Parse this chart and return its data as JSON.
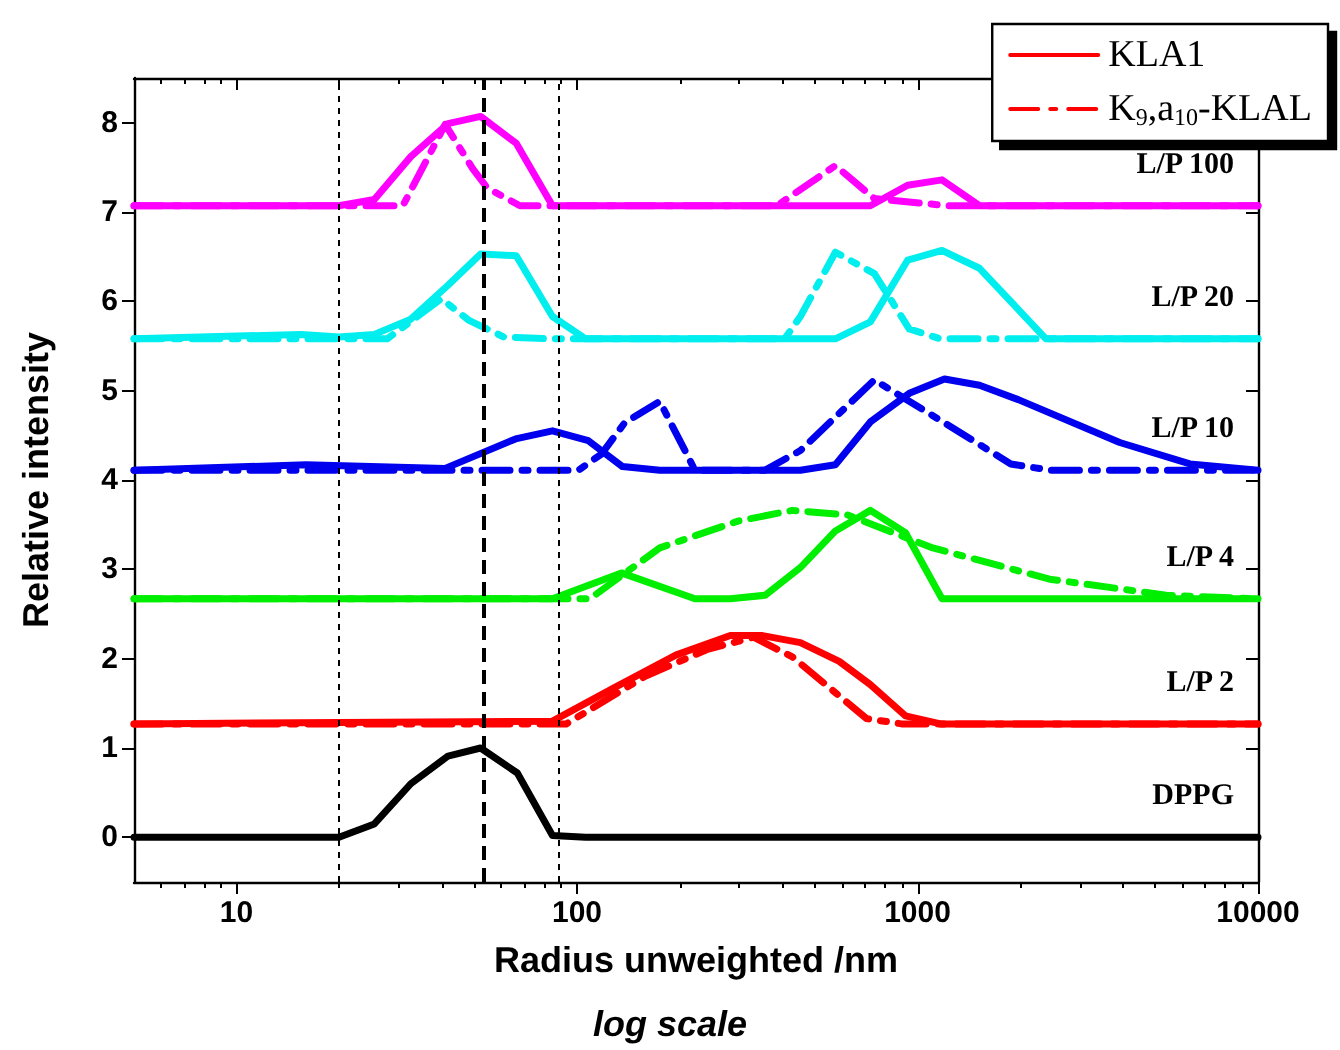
{
  "chart_data": {
    "type": "line",
    "xlabel": "Radius unweighted /nm",
    "ylabel": "Relative intensity",
    "log": "x",
    "xlim": [
      5,
      10000
    ],
    "xticks": [
      10,
      100,
      1000,
      10000
    ],
    "ylim": [
      -0.5,
      8.5
    ],
    "yticks": [
      0,
      1,
      2,
      3,
      4,
      5,
      6,
      7,
      8
    ],
    "grid": false,
    "legend": "top right",
    "marker": "none",
    "series": [
      {
        "color": "#000000",
        "line_style": "solid",
        "x": [
          5,
          20,
          25.4,
          32.5,
          41.8,
          52.1,
          66.8,
          84.7,
          106,
          10000
        ],
        "values": [
          0,
          0,
          0.15,
          0.6,
          0.91,
          1.0,
          0.72,
          0.02,
          0,
          0
        ]
      },
      {
        "name": "KLA1",
        "color": "#ff0000",
        "line_style": "solid",
        "x": [
          5,
          84.7,
          128,
          195,
          282,
          348,
          453,
          589,
          727,
          922,
          1169,
          10000
        ],
        "values": [
          1.27,
          1.3,
          1.67,
          2.04,
          2.26,
          2.26,
          2.18,
          1.97,
          1.71,
          1.36,
          1.27,
          1.27
        ]
      },
      {
        "name": "K$_{9}$,a$_{10}$-KLAL",
        "color": "#ff0000",
        "line_style": "dashdot",
        "x": [
          5,
          93,
          158,
          240,
          330,
          429,
          708,
          897,
          10000
        ],
        "values": [
          1.27,
          1.27,
          1.8,
          2.1,
          2.24,
          2.02,
          1.33,
          1.27,
          1.27
        ]
      },
      {
        "color": "#00ee00",
        "line_style": "solid",
        "x": [
          5,
          84.7,
          135,
          222,
          282,
          357,
          453,
          574,
          727,
          922,
          1180,
          10000
        ],
        "values": [
          2.67,
          2.67,
          2.96,
          2.67,
          2.67,
          2.71,
          3.02,
          3.43,
          3.66,
          3.41,
          2.67,
          2.67
        ]
      },
      {
        "color": "#00ee00",
        "line_style": "dashdot",
        "x": [
          5,
          109,
          175,
          297,
          429,
          621,
          1109,
          2443,
          5380,
          10000
        ],
        "values": [
          2.67,
          2.67,
          3.24,
          3.54,
          3.66,
          3.61,
          3.24,
          2.89,
          2.71,
          2.67
        ]
      },
      {
        "color": "#0000ee",
        "line_style": "solid",
        "x": [
          5,
          16,
          41,
          66,
          84.7,
          108,
          136,
          175,
          453,
          574,
          727,
          946,
          1200,
          1521,
          1977,
          3926,
          6310,
          10000
        ],
        "values": [
          4.11,
          4.17,
          4.13,
          4.46,
          4.55,
          4.44,
          4.15,
          4.11,
          4.11,
          4.17,
          4.65,
          4.97,
          5.13,
          5.06,
          4.9,
          4.42,
          4.18,
          4.11
        ]
      },
      {
        "color": "#0000ee",
        "line_style": "dashdot",
        "x": [
          5,
          49.5,
          101,
          118,
          138,
          175,
          222,
          357,
          453,
          747,
          1109,
          1879,
          2443,
          10000
        ],
        "values": [
          4.11,
          4.11,
          4.11,
          4.29,
          4.64,
          4.88,
          4.11,
          4.11,
          4.33,
          5.12,
          4.72,
          4.18,
          4.11,
          4.11
        ]
      },
      {
        "color": "#00eeee",
        "line_style": "solid",
        "x": [
          5,
          15.5,
          20,
          25.4,
          32.5,
          41.8,
          52.1,
          66.3,
          84.7,
          106,
          574,
          727,
          935,
          1180,
          1521,
          2383,
          10000
        ],
        "values": [
          5.58,
          5.63,
          5.6,
          5.63,
          5.8,
          6.18,
          6.53,
          6.51,
          5.83,
          5.58,
          5.58,
          5.77,
          6.46,
          6.57,
          6.37,
          5.58,
          5.58
        ]
      },
      {
        "color": "#00eeee",
        "line_style": "dashdot",
        "x": [
          5,
          27.7,
          40,
          48,
          61,
          84,
          407,
          453,
          574,
          747,
          946,
          1169,
          10000
        ],
        "values": [
          5.58,
          5.58,
          6.03,
          5.79,
          5.6,
          5.58,
          5.58,
          5.83,
          6.55,
          6.31,
          5.69,
          5.58,
          5.58
        ]
      },
      {
        "color": "#ff00ff",
        "line_style": "solid",
        "x": [
          5,
          20,
          25.4,
          32.5,
          41.8,
          52.1,
          66.3,
          84.7,
          727,
          935,
          1180,
          1521,
          10000
        ],
        "values": [
          7.07,
          7.07,
          7.14,
          7.62,
          7.99,
          8.07,
          7.77,
          7.07,
          7.07,
          7.3,
          7.36,
          7.07,
          7.07
        ]
      },
      {
        "color": "#ff00ff",
        "line_style": "dashdot",
        "x": [
          5,
          30.8,
          41,
          49.5,
          54.5,
          68,
          386,
          574,
          747,
          1231,
          10000
        ],
        "values": [
          7.07,
          7.07,
          7.98,
          7.48,
          7.27,
          7.07,
          7.07,
          7.52,
          7.15,
          7.07,
          7.07
        ]
      }
    ],
    "ref_lines": [
      {
        "axis": "x",
        "value": 20,
        "color": "#000000",
        "line_style": "dotted"
      },
      {
        "axis": "x",
        "value": 53,
        "color": "#000000",
        "line_style": "dashed"
      },
      {
        "axis": "x",
        "value": 88,
        "color": "#000000",
        "line_style": "dotted"
      }
    ],
    "annotations": [
      "L/P 100",
      "L/P 20",
      "L/P 10",
      "L/P 4",
      "L/P 2",
      "DPPG",
      "log scale"
    ]
  }
}
